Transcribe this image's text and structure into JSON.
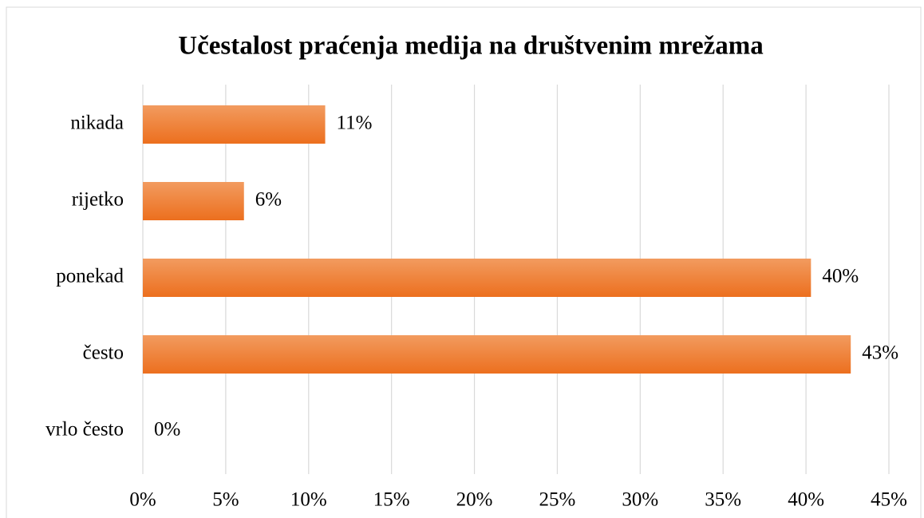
{
  "chart_data": {
    "type": "bar",
    "orientation": "horizontal",
    "title": "Učestalost praćenja medija na društvenim mrežama",
    "categories": [
      "nikada",
      "rijetko",
      "ponekad",
      "često",
      "vrlo često"
    ],
    "values": [
      11,
      6.1,
      40.3,
      42.7,
      0
    ],
    "value_labels": [
      "11%",
      "6%",
      "40%",
      "43%",
      "0%"
    ],
    "color": "#ed7d31",
    "xlim": [
      0,
      45
    ],
    "xticks": [
      {
        "value": 0,
        "label": "0%"
      },
      {
        "value": 5,
        "label": "5%"
      },
      {
        "value": 10,
        "label": "10%"
      },
      {
        "value": 15,
        "label": "15%"
      },
      {
        "value": 20,
        "label": "20%"
      },
      {
        "value": 25,
        "label": "25%"
      },
      {
        "value": 30,
        "label": "30%"
      },
      {
        "value": 35,
        "label": "35%"
      },
      {
        "value": 40,
        "label": "40%"
      },
      {
        "value": 45,
        "label": "45%"
      }
    ],
    "grid": true
  }
}
